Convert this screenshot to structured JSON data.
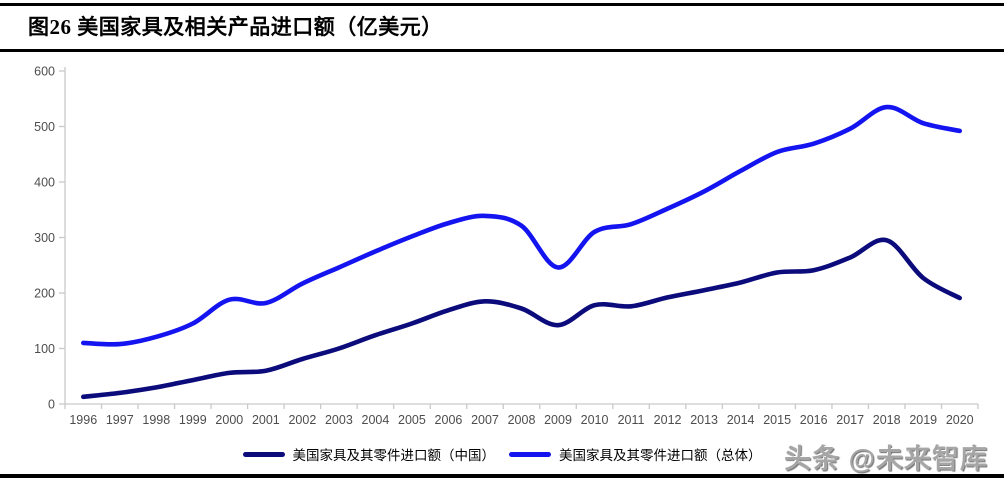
{
  "title": "图26 美国家具及相关产品进口额（亿美元）",
  "watermark": "头条 @未来智库",
  "colors": {
    "china_line": "#0b0b7c",
    "total_line": "#1414f0",
    "axis": "#c9c9c9",
    "tick_label": "#4d4d4d",
    "title_text": "#000000",
    "rule": "#000000"
  },
  "chart_data": {
    "type": "line",
    "title": "图26 美国家具及相关产品进口额（亿美元）",
    "x": [
      1996,
      1997,
      1998,
      1999,
      2000,
      2001,
      2002,
      2003,
      2004,
      2005,
      2006,
      2007,
      2008,
      2009,
      2010,
      2011,
      2012,
      2013,
      2014,
      2015,
      2016,
      2017,
      2018,
      2019,
      2020
    ],
    "series": [
      {
        "name": "美国家具及其零件进口额（中国）",
        "color": "#0b0b7c",
        "values": [
          13,
          20,
          30,
          43,
          56,
          60,
          81,
          100,
          124,
          145,
          169,
          185,
          172,
          142,
          178,
          176,
          192,
          205,
          219,
          237,
          241,
          264,
          295,
          227,
          191
        ]
      },
      {
        "name": "美国家具及其零件进口额（总体）",
        "color": "#1414f0",
        "values": [
          110,
          108,
          121,
          145,
          188,
          182,
          217,
          246,
          275,
          302,
          326,
          339,
          321,
          246,
          310,
          324,
          352,
          383,
          420,
          454,
          469,
          496,
          535,
          506,
          492
        ]
      }
    ],
    "xlabel": "",
    "ylabel": "",
    "ylim": [
      0,
      600
    ],
    "yticks": [
      0,
      100,
      200,
      300,
      400,
      500,
      600
    ],
    "grid": false,
    "legend_position": "bottom"
  }
}
